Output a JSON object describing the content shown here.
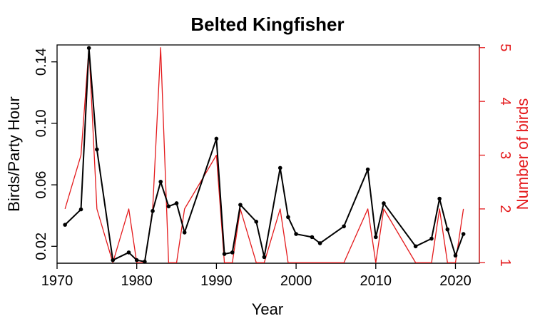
{
  "chart_data": {
    "type": "line",
    "title": "Belted Kingfisher",
    "xlabel": "Year",
    "ylabel_left": "Birds/Party Hour",
    "ylabel_right": "Number of birds",
    "xlim": [
      1970,
      2023
    ],
    "ylim_left": [
      0.009,
      0.151
    ],
    "ylim_right": [
      0.99,
      5.05
    ],
    "x_ticks": [
      1970,
      1980,
      1990,
      2000,
      2010,
      2020
    ],
    "y_ticks_left": [
      0.02,
      0.06,
      0.1,
      0.14
    ],
    "y_ticks_left_labels": [
      "0.02",
      "0.06",
      "0.10",
      "0.14"
    ],
    "y_ticks_right": [
      1,
      2,
      3,
      4,
      5
    ],
    "grid": false,
    "colors": {
      "left_series": "#000000",
      "right_series": "#e41a1c"
    },
    "series": [
      {
        "axis": "left",
        "x": [
          1971,
          1973,
          1974,
          1975,
          1977,
          1979,
          1980,
          1981,
          1982,
          1983,
          1984,
          1985,
          1986,
          1990,
          1991,
          1992,
          1993,
          1995,
          1996,
          1998,
          1999,
          2000,
          2002,
          2003,
          2006,
          2009,
          2010,
          2011,
          2015,
          2017,
          2018,
          2019,
          2020,
          2021
        ],
        "values": [
          0.034,
          0.044,
          0.149,
          0.083,
          0.011,
          0.016,
          0.011,
          0.01,
          0.043,
          0.062,
          0.046,
          0.048,
          0.029,
          0.09,
          0.015,
          0.016,
          0.047,
          0.036,
          0.013,
          0.071,
          0.039,
          0.028,
          0.026,
          0.022,
          0.033,
          0.07,
          0.026,
          0.048,
          0.02,
          0.025,
          0.051,
          0.031,
          0.014,
          0.028
        ]
      },
      {
        "axis": "right",
        "x": [
          1971,
          1973,
          1974,
          1975,
          1977,
          1979,
          1980,
          1981,
          1982,
          1983,
          1984,
          1985,
          1986,
          1990,
          1991,
          1992,
          1993,
          1995,
          1996,
          1998,
          1999,
          2000,
          2002,
          2003,
          2006,
          2009,
          2010,
          2011,
          2015,
          2017,
          2018,
          2019,
          2020,
          2021
        ],
        "values": [
          2,
          3,
          5,
          2,
          1,
          2,
          1,
          1,
          2,
          5,
          1,
          1,
          2,
          3,
          1,
          1,
          2,
          1,
          1,
          2,
          1,
          1,
          1,
          1,
          1,
          2,
          1,
          2,
          1,
          1,
          2,
          1,
          1,
          2
        ]
      }
    ]
  }
}
